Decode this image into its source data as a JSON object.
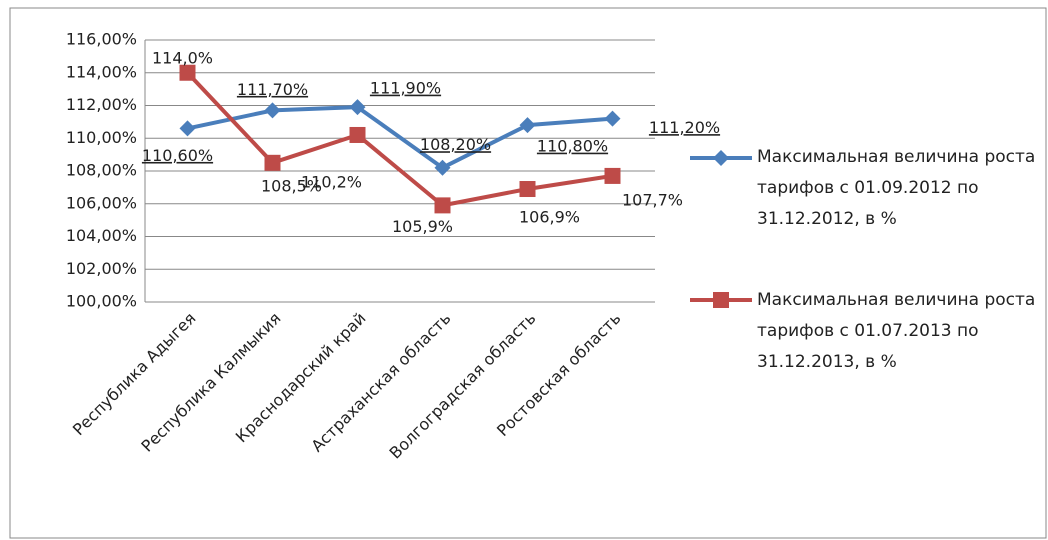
{
  "chart_data": {
    "type": "line",
    "categories": [
      "Республика Адыгея",
      "Республика Калмыкия",
      "Краснодарский край",
      "Астраханская область",
      "Волгоградская область",
      "Ростовская область"
    ],
    "series": [
      {
        "name": "Максимальная величина роста тарифов с 01.09.2012 по 31.12.2012, в %",
        "color": "#4a7ebb",
        "marker": "diamond",
        "values": [
          110.6,
          111.7,
          111.9,
          108.2,
          110.8,
          111.2
        ],
        "value_labels": [
          "110,60%",
          "111,70%",
          "111,90%",
          "108,20%",
          "110,80%",
          "111,20%"
        ]
      },
      {
        "name": "Максимальная величина роста тарифов с 01.07.2013 по 31.12.2013, в %",
        "color": "#be4b48",
        "marker": "square",
        "values": [
          114.0,
          108.5,
          110.2,
          105.9,
          106.9,
          107.7
        ],
        "value_labels": [
          "114,0%",
          "108,5%",
          "110,2%",
          "105,9%",
          "106,9%",
          "107,7%"
        ]
      }
    ],
    "ylim": [
      100,
      116
    ],
    "yticks": [
      {
        "value": 100,
        "label": "100,00%"
      },
      {
        "value": 102,
        "label": "102,00%"
      },
      {
        "value": 104,
        "label": "104,00%"
      },
      {
        "value": 106,
        "label": "106,00%"
      },
      {
        "value": 108,
        "label": "108,00%"
      },
      {
        "value": 110,
        "label": "110,00%"
      },
      {
        "value": 112,
        "label": "112,00%"
      },
      {
        "value": 114,
        "label": "114,00%"
      },
      {
        "value": 116,
        "label": "116,00%"
      }
    ],
    "grid": true,
    "legend": "right"
  }
}
